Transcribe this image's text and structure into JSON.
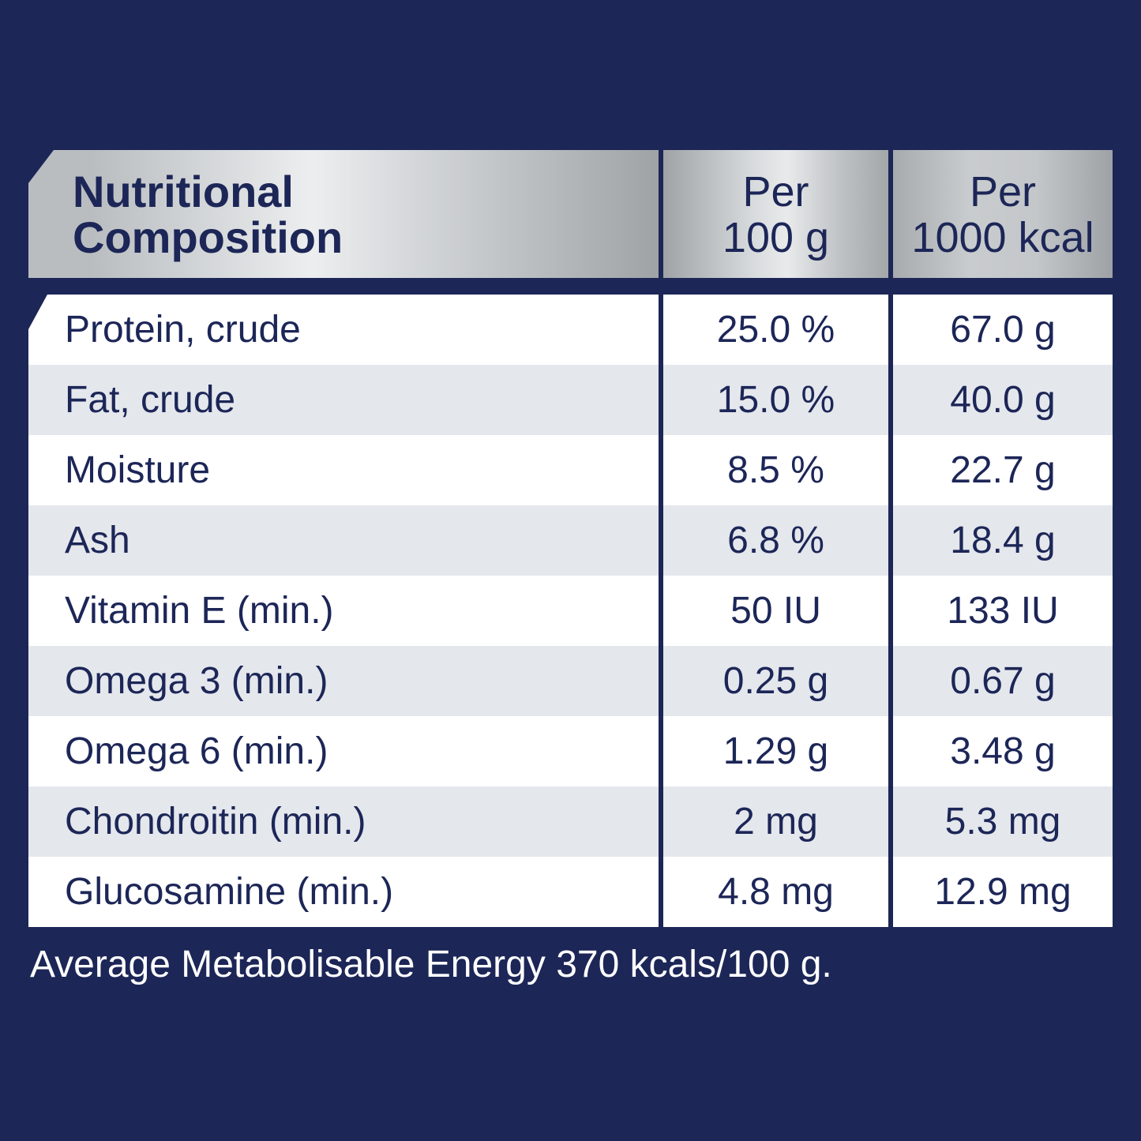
{
  "header": {
    "title": "Nutritional\nComposition",
    "col1": "Per\n100 g",
    "col2": "Per\n1000 kcal"
  },
  "rows": [
    {
      "name": "Protein, crude",
      "per100g": "25.0 %",
      "per1000kcal": "67.0 g"
    },
    {
      "name": "Fat, crude",
      "per100g": "15.0 %",
      "per1000kcal": "40.0 g"
    },
    {
      "name": "Moisture",
      "per100g": "8.5 %",
      "per1000kcal": "22.7 g"
    },
    {
      "name": "Ash",
      "per100g": "6.8 %",
      "per1000kcal": "18.4 g"
    },
    {
      "name": "Vitamin E (min.)",
      "per100g": "50 IU",
      "per1000kcal": "133 IU"
    },
    {
      "name": "Omega 3 (min.)",
      "per100g": "0.25 g",
      "per1000kcal": "0.67 g"
    },
    {
      "name": "Omega 6 (min.)",
      "per100g": "1.29 g",
      "per1000kcal": "3.48 g"
    },
    {
      "name": "Chondroitin (min.)",
      "per100g": "2 mg",
      "per1000kcal": "5.3 mg"
    },
    {
      "name": "Glucosamine (min.)",
      "per100g": "4.8 mg",
      "per1000kcal": "12.9 mg"
    }
  ],
  "footnote": "Average Metabolisable Energy 370 kcals/100 g.",
  "colors": {
    "background": "#1c2657",
    "text": "#1c2657",
    "row_alt": "#e4e7ec"
  }
}
